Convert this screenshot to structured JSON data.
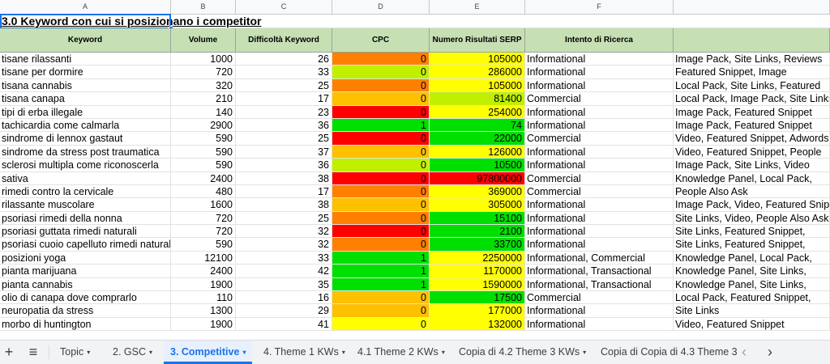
{
  "column_letters": [
    "A",
    "B",
    "C",
    "D",
    "E",
    "F",
    ""
  ],
  "title": "3.0 Keyword con cui si posizionano i competitor",
  "headers": [
    "Keyword",
    "Volume",
    "Difficoltà Keyword",
    "CPC",
    "Numero Risultati SERP",
    "Intento di Ricerca",
    ""
  ],
  "colors": {
    "header_bg": "#c6e0b4",
    "red": "#ff0000",
    "orange": "#ff8000",
    "yellow_orange": "#ffc000",
    "yellow": "#ffff00",
    "yellow_green": "#c0f000",
    "green": "#00e000",
    "accent": "#1a73e8"
  },
  "rows": [
    {
      "keyword": "tisane rilassanti",
      "volume": "1000",
      "difficulty": "26",
      "cpc": "0",
      "serp": "105000",
      "intent": "Informational",
      "features": "Image Pack, Site Links, Reviews",
      "cpc_color": "#ff8000",
      "serp_color": "#ffff00"
    },
    {
      "keyword": "tisane per dormire",
      "volume": "720",
      "difficulty": "33",
      "cpc": "0",
      "serp": "286000",
      "intent": "Informational",
      "features": "Featured Snippet, Image",
      "cpc_color": "#c0f000",
      "serp_color": "#ffff00"
    },
    {
      "keyword": "tisana cannabis",
      "volume": "320",
      "difficulty": "25",
      "cpc": "0",
      "serp": "105000",
      "intent": "Informational",
      "features": "Local Pack, Site Links, Featured",
      "cpc_color": "#ff8000",
      "serp_color": "#ffff00"
    },
    {
      "keyword": "tisana canapa",
      "volume": "210",
      "difficulty": "17",
      "cpc": "0",
      "serp": "81400",
      "intent": "Commercial",
      "features": "Local Pack, Image Pack, Site Links",
      "cpc_color": "#ffc000",
      "serp_color": "#c0f000"
    },
    {
      "keyword": "tipi di erba illegale",
      "volume": "140",
      "difficulty": "23",
      "cpc": "0",
      "serp": "254000",
      "intent": "Informational",
      "features": "Image Pack, Featured Snippet",
      "cpc_color": "#ff0000",
      "serp_color": "#ffff00"
    },
    {
      "keyword": "tachicardia come calmarla",
      "volume": "2900",
      "difficulty": "36",
      "cpc": "1",
      "serp": "74",
      "intent": "Informational",
      "features": "Image Pack, Featured Snippet",
      "cpc_color": "#00e000",
      "serp_color": "#00e000"
    },
    {
      "keyword": "sindrome di lennox gastaut",
      "volume": "590",
      "difficulty": "25",
      "cpc": "0",
      "serp": "22000",
      "intent": "Commercial",
      "features": "Video, Featured Snippet, Adwords",
      "cpc_color": "#ff0000",
      "serp_color": "#00e000"
    },
    {
      "keyword": "sindrome da stress post traumatica",
      "volume": "590",
      "difficulty": "37",
      "cpc": "0",
      "serp": "126000",
      "intent": "Informational",
      "features": "Video, Featured Snippet, People",
      "cpc_color": "#ffc000",
      "serp_color": "#ffff00"
    },
    {
      "keyword": "sclerosi multipla come riconoscerla",
      "volume": "590",
      "difficulty": "36",
      "cpc": "0",
      "serp": "10500",
      "intent": "Informational",
      "features": "Image Pack, Site Links, Video",
      "cpc_color": "#c0f000",
      "serp_color": "#00e000"
    },
    {
      "keyword": "sativa",
      "volume": "2400",
      "difficulty": "38",
      "cpc": "0",
      "serp": "97800000",
      "intent": "Commercial",
      "features": "Knowledge Panel, Local Pack,",
      "cpc_color": "#ff0000",
      "serp_color": "#ff0000"
    },
    {
      "keyword": "rimedi contro la cervicale",
      "volume": "480",
      "difficulty": "17",
      "cpc": "0",
      "serp": "369000",
      "intent": "Commercial",
      "features": "People Also Ask",
      "cpc_color": "#ff8000",
      "serp_color": "#ffff00"
    },
    {
      "keyword": "rilassante muscolare",
      "volume": "1600",
      "difficulty": "38",
      "cpc": "0",
      "serp": "305000",
      "intent": "Informational",
      "features": "Image Pack, Video, Featured Snippet",
      "cpc_color": "#ffc000",
      "serp_color": "#ffff00"
    },
    {
      "keyword": "psoriasi rimedi della nonna",
      "volume": "720",
      "difficulty": "25",
      "cpc": "0",
      "serp": "15100",
      "intent": "Informational",
      "features": "Site Links, Video, People Also Ask",
      "cpc_color": "#ff8000",
      "serp_color": "#00e000"
    },
    {
      "keyword": "psoriasi guttata rimedi naturali",
      "volume": "720",
      "difficulty": "32",
      "cpc": "0",
      "serp": "2100",
      "intent": "Informational",
      "features": "Site Links, Featured Snippet,",
      "cpc_color": "#ff0000",
      "serp_color": "#00e000"
    },
    {
      "keyword": "psoriasi cuoio capelluto rimedi naturali",
      "volume": "590",
      "difficulty": "32",
      "cpc": "0",
      "serp": "33700",
      "intent": "Informational",
      "features": "Site Links, Featured Snippet,",
      "cpc_color": "#ff8000",
      "serp_color": "#00e000"
    },
    {
      "keyword": "posizioni yoga",
      "volume": "12100",
      "difficulty": "33",
      "cpc": "1",
      "serp": "2250000",
      "intent": "Informational, Commercial",
      "features": "Knowledge Panel, Local Pack,",
      "cpc_color": "#00e000",
      "serp_color": "#ffff00"
    },
    {
      "keyword": "pianta marijuana",
      "volume": "2400",
      "difficulty": "42",
      "cpc": "1",
      "serp": "1170000",
      "intent": "Informational, Transactional",
      "features": "Knowledge Panel, Site Links,",
      "cpc_color": "#00e000",
      "serp_color": "#ffff00"
    },
    {
      "keyword": "pianta cannabis",
      "volume": "1900",
      "difficulty": "35",
      "cpc": "1",
      "serp": "1590000",
      "intent": "Informational, Transactional",
      "features": "Knowledge Panel, Site Links,",
      "cpc_color": "#00e000",
      "serp_color": "#ffff00"
    },
    {
      "keyword": "olio di canapa dove comprarlo",
      "volume": "110",
      "difficulty": "16",
      "cpc": "0",
      "serp": "17500",
      "intent": "Commercial",
      "features": "Local Pack, Featured Snippet,",
      "cpc_color": "#ffc000",
      "serp_color": "#00e000"
    },
    {
      "keyword": "neuropatia da stress",
      "volume": "1300",
      "difficulty": "29",
      "cpc": "0",
      "serp": "177000",
      "intent": "Informational",
      "features": "Site Links",
      "cpc_color": "#ffc000",
      "serp_color": "#ffff00"
    },
    {
      "keyword": "morbo di huntington",
      "volume": "1900",
      "difficulty": "41",
      "cpc": "0",
      "serp": "132000",
      "intent": "Informational",
      "features": "Video, Featured Snippet",
      "cpc_color": "#ffff00",
      "serp_color": "#ffff00"
    }
  ],
  "tabs": {
    "add_icon": "+",
    "menu_icon": "≡",
    "items": [
      "Topic",
      "2. GSC",
      "3. Competitive",
      "4. Theme 1 KWs",
      "4.1 Theme 2 KWs",
      "Copia di 4.2 Theme 3 KWs",
      "Copia di Copia di 4.3 Theme 3"
    ],
    "active_index": 2,
    "caret": "▾",
    "prev_icon": "‹",
    "next_icon": "›"
  }
}
